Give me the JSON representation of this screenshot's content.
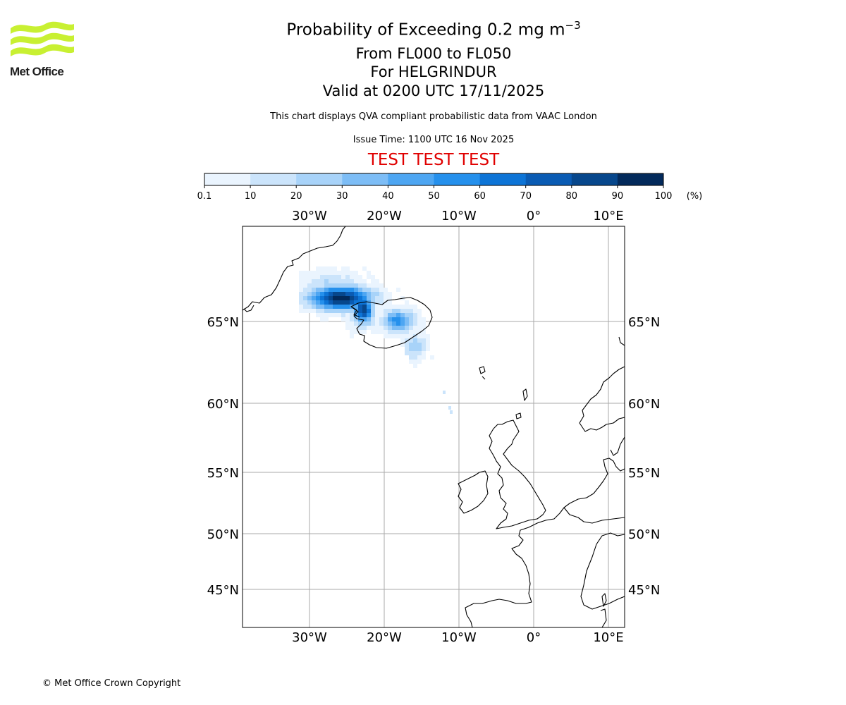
{
  "logo": {
    "text": "Met Office",
    "colors": {
      "waves": "#c8f032",
      "text": "#1e1e1e"
    }
  },
  "title": {
    "line1_prefix": "Probability of Exceeding 0.2 mg m",
    "line1_exponent": "−3",
    "line2": "From FL000 to FL050",
    "line3": "For HELGRINDUR",
    "line4": "Valid at 0200 UTC 17/11/2025"
  },
  "subtitle": "This chart displays QVA compliant probabilistic data from VAAC London",
  "issue_time": "Issue Time: 1100 UTC 16 Nov 2025",
  "test_banner": "TEST TEST TEST",
  "colorbar": {
    "ticks": [
      "0.1",
      "10",
      "20",
      "30",
      "40",
      "50",
      "60",
      "70",
      "80",
      "90",
      "100"
    ],
    "unit": "(%)",
    "colors": [
      "#eaf4fe",
      "#cbe4fb",
      "#a8d3f9",
      "#7dbdf6",
      "#4ea6f2",
      "#2590ec",
      "#0d74d6",
      "#0a5bb3",
      "#07478c",
      "#032a5b"
    ]
  },
  "map": {
    "lon_labels": [
      "30°W",
      "20°W",
      "10°W",
      "0°",
      "10°E"
    ],
    "lat_labels": [
      "65°N",
      "60°N",
      "55°N",
      "50°N",
      "45°N"
    ],
    "grid_color": "#aaaaaa"
  },
  "copyright": "© Met Office Crown Copyright"
}
